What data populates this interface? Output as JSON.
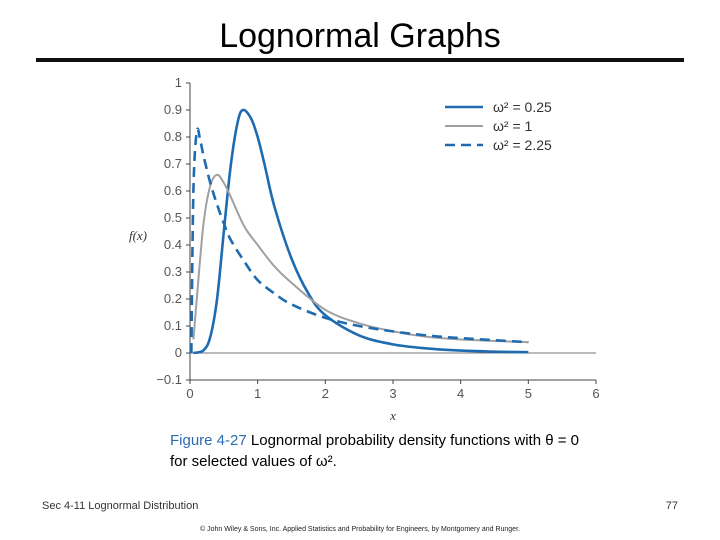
{
  "slide": {
    "title": "Lognormal Graphs",
    "caption_fig": "Figure 4-27",
    "caption_text": "Lognormal probability density functions with θ = 0 for selected values of ω².",
    "footer_left": "Sec 4-11 Lognormal Distribution",
    "footer_right": "77",
    "copyright": "© John Wiley & Sons, Inc.  Applied Statistics and Probability for Engineers, by Montgomery and Runger."
  },
  "colors": {
    "blue": "#1f6bb0",
    "gray": "#a0a0a0",
    "axis": "#444444"
  },
  "chart_data": {
    "type": "line",
    "xlabel": "x",
    "ylabel": "f(x)",
    "xlim": [
      0,
      6
    ],
    "ylim": [
      -0.1,
      1
    ],
    "xticks": [
      "0",
      "1",
      "2",
      "3",
      "4",
      "5",
      "6"
    ],
    "yticks": [
      "−0.1",
      "0",
      "0.1",
      "0.2",
      "0.3",
      "0.4",
      "0.5",
      "0.6",
      "0.7",
      "0.8",
      "0.9",
      "1"
    ],
    "legend_position": "top-right",
    "series": [
      {
        "name": "ω² = 0.25",
        "style": "solid",
        "color": "#1f6bb0",
        "x": [
          0.05,
          0.2,
          0.3,
          0.4,
          0.5,
          0.6,
          0.7,
          0.78,
          0.9,
          1.0,
          1.1,
          1.25,
          1.5,
          1.75,
          2.0,
          2.5,
          3.0,
          3.5,
          4.0,
          4.5,
          5.0
        ],
        "y": [
          0.0,
          0.01,
          0.06,
          0.2,
          0.45,
          0.69,
          0.85,
          0.9,
          0.87,
          0.8,
          0.7,
          0.54,
          0.35,
          0.22,
          0.14,
          0.065,
          0.032,
          0.017,
          0.009,
          0.005,
          0.003
        ]
      },
      {
        "name": "ω² = 1",
        "style": "solid",
        "color": "#a0a0a0",
        "x": [
          0.05,
          0.1,
          0.2,
          0.3,
          0.4,
          0.5,
          0.6,
          0.8,
          1.0,
          1.25,
          1.5,
          2.0,
          2.5,
          3.0,
          3.5,
          4.0,
          5.0
        ],
        "y": [
          0.05,
          0.2,
          0.48,
          0.62,
          0.66,
          0.63,
          0.58,
          0.47,
          0.4,
          0.32,
          0.26,
          0.16,
          0.11,
          0.08,
          0.06,
          0.05,
          0.04
        ]
      },
      {
        "name": "ω² = 2.25",
        "style": "dashed",
        "color": "#1f6bb0",
        "x": [
          0.02,
          0.05,
          0.1,
          0.15,
          0.2,
          0.3,
          0.4,
          0.5,
          0.6,
          0.8,
          1.0,
          1.25,
          1.5,
          2.0,
          2.5,
          3.0,
          3.5,
          4.0,
          5.0
        ],
        "y": [
          0.0,
          0.6,
          0.82,
          0.79,
          0.73,
          0.63,
          0.55,
          0.48,
          0.42,
          0.34,
          0.27,
          0.22,
          0.18,
          0.13,
          0.1,
          0.08,
          0.065,
          0.055,
          0.04
        ]
      }
    ]
  }
}
